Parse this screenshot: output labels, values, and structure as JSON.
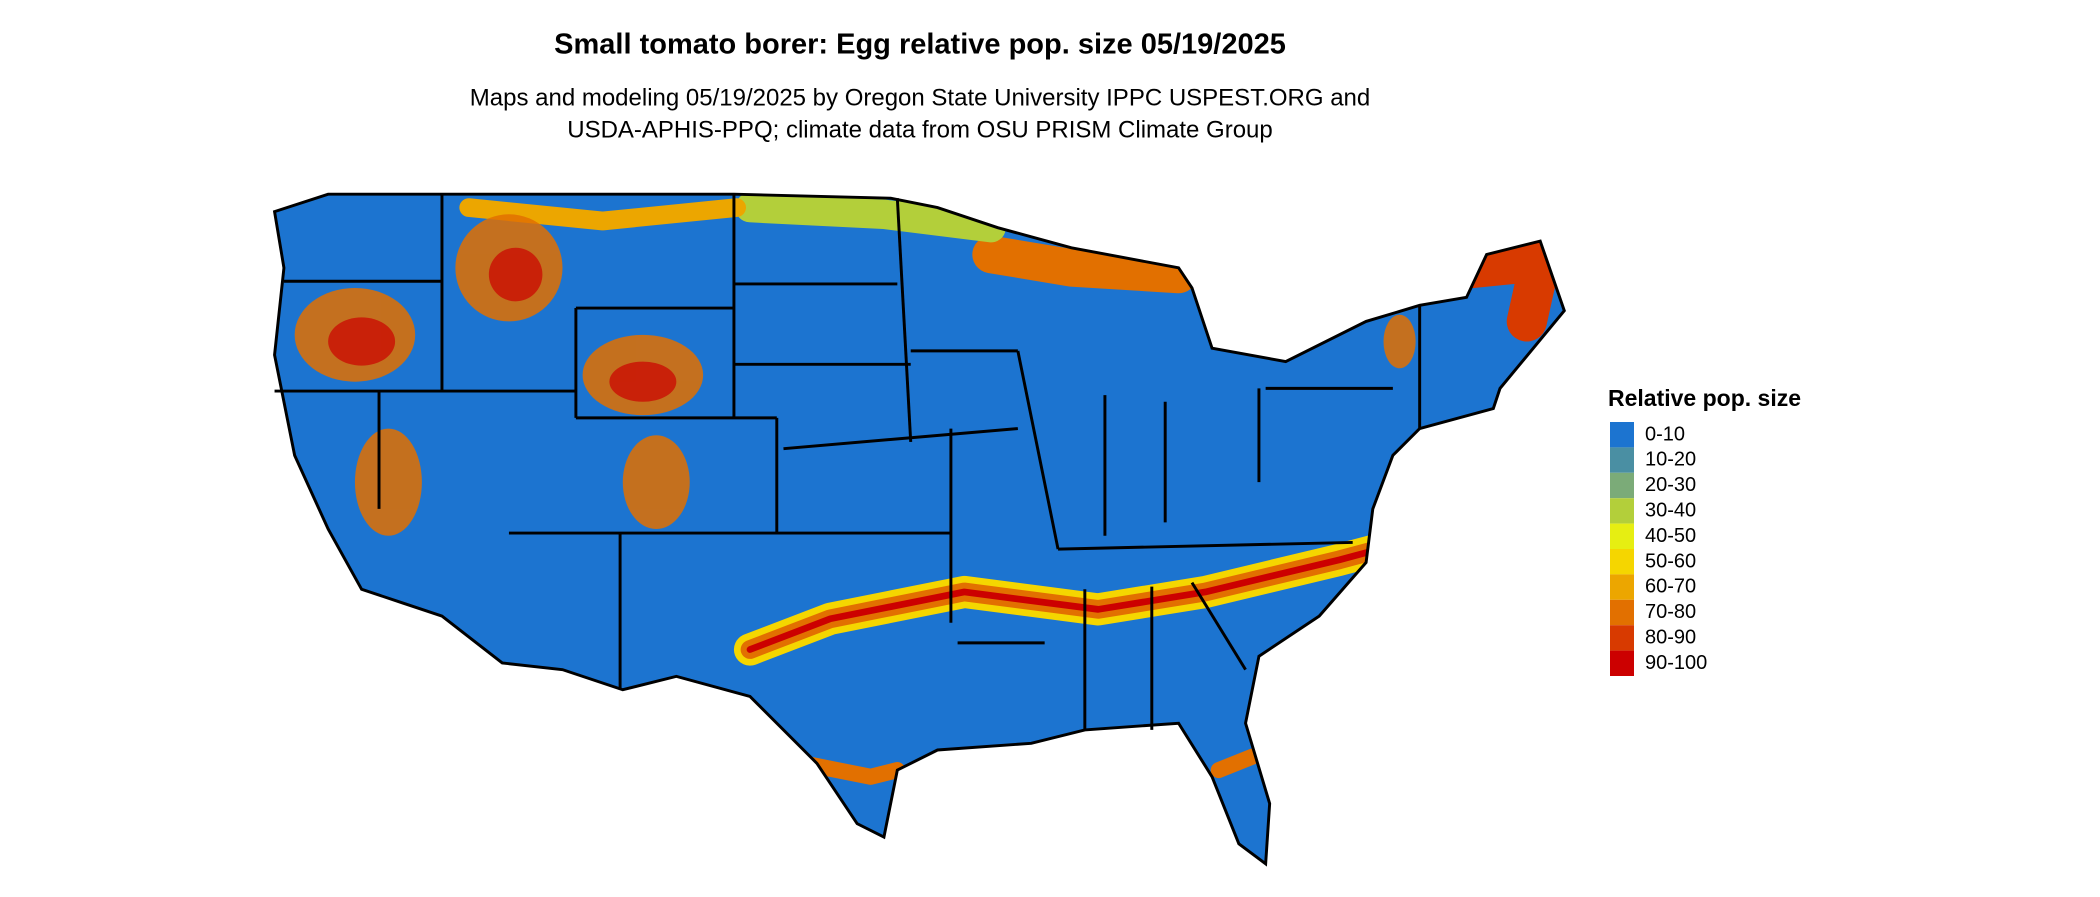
{
  "header": {
    "title": "Small tomato borer: Egg relative pop. size 05/19/2025",
    "subtitle_lines": [
      "Maps and modeling 05/19/2025 by Oregon State University IPPC USPEST.ORG and",
      "USDA-APHIS-PPQ; climate data from OSU PRISM Climate Group"
    ]
  },
  "legend": {
    "title": "Relative pop. size",
    "items": [
      {
        "label": "0-10",
        "color": "#1c74d0"
      },
      {
        "label": "10-20",
        "color": "#4a8fa3"
      },
      {
        "label": "20-30",
        "color": "#7bab78"
      },
      {
        "label": "30-40",
        "color": "#b3cf3a"
      },
      {
        "label": "40-50",
        "color": "#e6ee12"
      },
      {
        "label": "50-60",
        "color": "#f5d600"
      },
      {
        "label": "60-70",
        "color": "#eca600"
      },
      {
        "label": "70-80",
        "color": "#e27000"
      },
      {
        "label": "80-90",
        "color": "#d83a00"
      },
      {
        "label": "90-100",
        "color": "#cc0000"
      }
    ]
  }
}
